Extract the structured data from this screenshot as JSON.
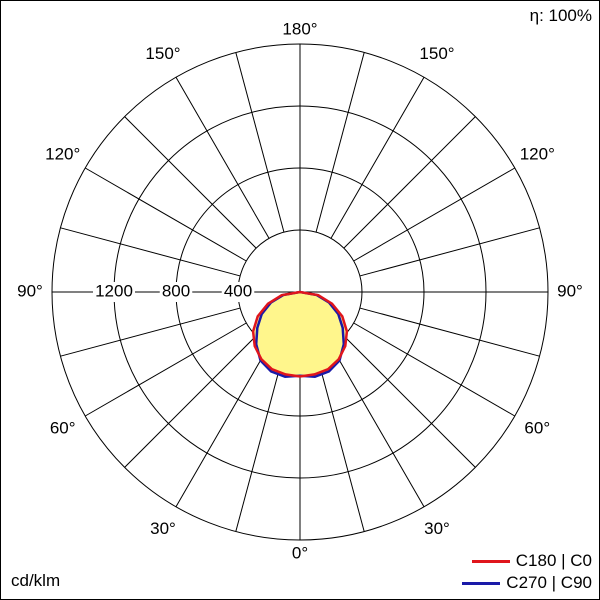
{
  "efficiency_label": "η: 100%",
  "unit_label": "cd/klm",
  "chart_data": {
    "type": "polar",
    "angle_labels": {
      "top": "180°",
      "upper_left": "150°",
      "upper_right": "150°",
      "mid_upper_left": "120°",
      "mid_upper_right": "120°",
      "left": "90°",
      "right": "90°",
      "lower_left": "60°",
      "lower_right": "60°",
      "bottom_left": "30°",
      "bottom_right": "30°",
      "bottom": "0°"
    },
    "radial_ticks": [
      400,
      800,
      1200
    ],
    "radial_max": 1600,
    "angular_grid_step_deg": 15,
    "series": [
      {
        "name": "C180 | C0",
        "color": "#e0151c",
        "fill": "#fff68c",
        "gamma": [
          0,
          10,
          20,
          30,
          40,
          50,
          60,
          70,
          80,
          90
        ],
        "values": [
          545,
          540,
          530,
          500,
          455,
          395,
          315,
          220,
          120,
          0
        ]
      },
      {
        "name": "C270 | C90",
        "color": "#1a1aa8",
        "gamma": [
          0,
          10,
          20,
          30,
          40,
          50,
          60,
          70,
          80,
          90
        ],
        "values": [
          540,
          555,
          545,
          510,
          440,
          360,
          285,
          200,
          110,
          0
        ]
      }
    ]
  }
}
